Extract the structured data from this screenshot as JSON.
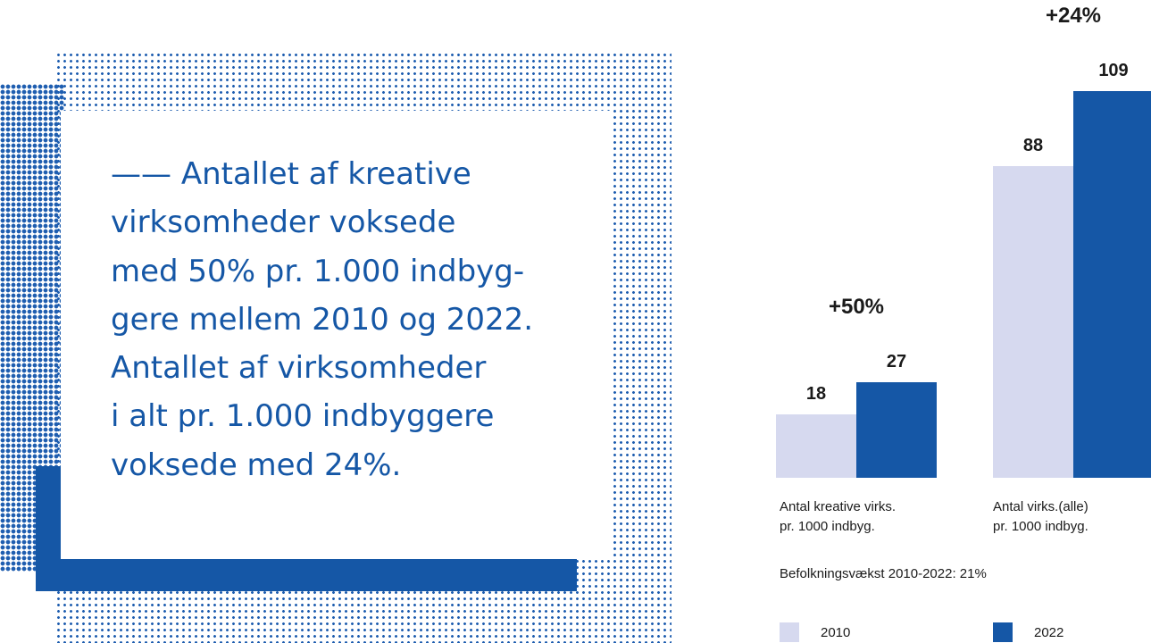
{
  "quote": {
    "dash": "——",
    "lines": [
      "Antallet af kreative",
      "virksomheder voksede",
      "med 50% pr. 1.000 indbyg-",
      "gere mellem 2010 og 2022.",
      "Antallet af virksomheder",
      "i alt pr. 1.000 indbyggere",
      "voksede med 24%."
    ]
  },
  "chart_data": {
    "type": "bar",
    "categories": [
      "Antal kreative virks. pr. 1000 indbyg.",
      "Antal virks.(alle) pr. 1000 indbyg."
    ],
    "category_lines": [
      [
        "Antal kreative virks.",
        "pr. 1000 indbyg."
      ],
      [
        "Antal virks.(alle)",
        "pr. 1000 indbyg."
      ]
    ],
    "series": [
      {
        "name": "2010",
        "values": [
          18,
          88
        ],
        "color": "#d6d9ef"
      },
      {
        "name": "2022",
        "values": [
          27,
          109
        ],
        "color": "#1557a6"
      }
    ],
    "value_labels": [
      [
        "18",
        "88"
      ],
      [
        "27",
        "109"
      ]
    ],
    "growth_labels": [
      "+50%",
      "+24%"
    ],
    "note": "Befolkningsvækst 2010-2022: 21%",
    "legend": [
      "2010",
      "2022"
    ],
    "legend_placement": "bottom",
    "title": "",
    "xlabel": "",
    "ylabel": ""
  }
}
